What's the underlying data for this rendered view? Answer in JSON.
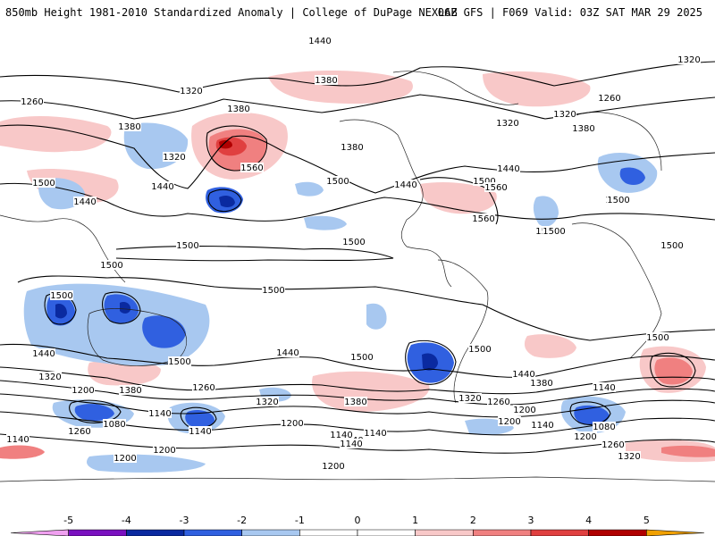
{
  "header": {
    "title_left": "850mb Height 1981-2010 Standardized Anomaly | College of DuPage NEXLAB",
    "title_right": "06Z GFS | F069 Valid: 03Z SAT MAR 29 2025"
  },
  "colors": {
    "n5": "#f0a0f0",
    "n4": "#7a10c0",
    "n3": "#0a2aa0",
    "n2": "#3060e0",
    "n1": "#a8c8f0",
    "p1": "#f8c8c8",
    "p2": "#f08080",
    "p3": "#e04040",
    "p4": "#b00000",
    "p5": "#f0a000"
  },
  "colorbar": {
    "ticks": [
      "-5",
      "-4",
      "-3",
      "-2",
      "-1",
      "0",
      "1",
      "2",
      "3",
      "4",
      "5"
    ]
  },
  "contour_labels": [
    {
      "text": "1440"
    },
    {
      "text": "1380"
    },
    {
      "text": "1320"
    },
    {
      "text": "1320"
    },
    {
      "text": "1260"
    },
    {
      "text": "1380"
    },
    {
      "text": "1320"
    },
    {
      "text": "1380"
    },
    {
      "text": "1560"
    },
    {
      "text": "1380"
    },
    {
      "text": "1500"
    },
    {
      "text": "1440"
    },
    {
      "text": "1500"
    },
    {
      "text": "1440"
    },
    {
      "text": "1500"
    },
    {
      "text": "1440"
    },
    {
      "text": "1500"
    },
    {
      "text": "1560"
    },
    {
      "text": "1560"
    },
    {
      "text": "1320"
    },
    {
      "text": "1260"
    },
    {
      "text": "1320"
    },
    {
      "text": "1380"
    },
    {
      "text": "1440"
    },
    {
      "text": "1500"
    },
    {
      "text": "1500"
    },
    {
      "text": "1500"
    },
    {
      "text": "1500"
    },
    {
      "text": "1500"
    },
    {
      "text": "1500"
    },
    {
      "text": "1500"
    },
    {
      "text": "1500"
    },
    {
      "text": "1440"
    },
    {
      "text": "1320"
    },
    {
      "text": "1200"
    },
    {
      "text": "1380"
    },
    {
      "text": "1260"
    },
    {
      "text": "1140"
    },
    {
      "text": "1080"
    },
    {
      "text": "1140"
    },
    {
      "text": "1200"
    },
    {
      "text": "1260"
    },
    {
      "text": "1140"
    },
    {
      "text": "1200"
    },
    {
      "text": "1500"
    },
    {
      "text": "1440"
    },
    {
      "text": "1320"
    },
    {
      "text": "1200"
    },
    {
      "text": "1380"
    },
    {
      "text": "1140"
    },
    {
      "text": "1140"
    },
    {
      "text": "1200"
    },
    {
      "text": "1500"
    },
    {
      "text": "1440"
    },
    {
      "text": "1380"
    },
    {
      "text": "1320"
    },
    {
      "text": "1260"
    },
    {
      "text": "1200"
    },
    {
      "text": "1140"
    },
    {
      "text": "1080"
    },
    {
      "text": "1200"
    },
    {
      "text": "1140"
    },
    {
      "text": "1260"
    },
    {
      "text": "1320"
    },
    {
      "text": "1200"
    },
    {
      "text": "1140"
    },
    {
      "text": "1140"
    },
    {
      "text": "1500"
    },
    {
      "text": "1500"
    },
    {
      "text": "1500"
    }
  ]
}
